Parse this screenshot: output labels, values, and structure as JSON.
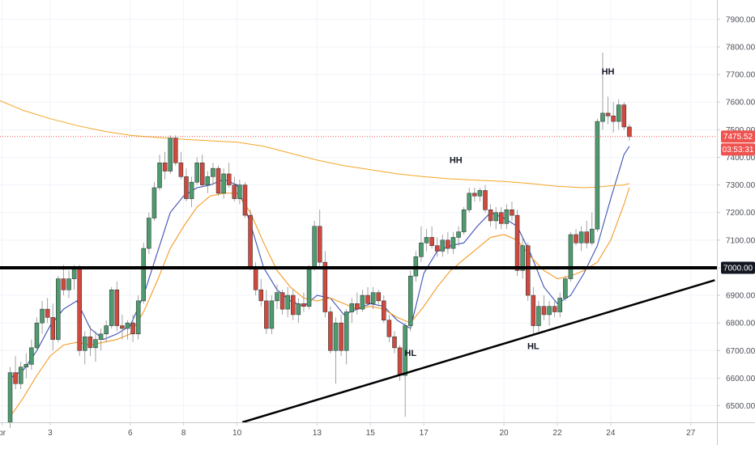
{
  "chart_data": {
    "type": "candlestick",
    "ylim": [
      6440,
      7970
    ],
    "xlim": [
      1.12,
      27.98
    ],
    "y_ticks": [
      "6500.00",
      "6600.00",
      "6700.00",
      "6800.00",
      "6900.00",
      "7000.00",
      "7100.00",
      "7200.00",
      "7300.00",
      "7400.00",
      "7500.00",
      "7600.00",
      "7700.00",
      "7800.00",
      "7900.00"
    ],
    "x_ticks": [
      {
        "label": "pr",
        "x": 1.2
      },
      {
        "label": "3",
        "x": 3
      },
      {
        "label": "6",
        "x": 6
      },
      {
        "label": "8",
        "x": 8
      },
      {
        "label": "10",
        "x": 10
      },
      {
        "label": "13",
        "x": 13
      },
      {
        "label": "15",
        "x": 15
      },
      {
        "label": "17",
        "x": 17
      },
      {
        "label": "20",
        "x": 20
      },
      {
        "label": "22",
        "x": 22
      },
      {
        "label": "24",
        "x": 24
      },
      {
        "label": "27",
        "x": 27
      }
    ],
    "colors": {
      "up": "#26a69a",
      "down": "#ef5350",
      "up_body": "#4f9a6e",
      "down_body": "#d0493f",
      "ema_fast": "#3f51b5",
      "ema_slow": "#f59a23",
      "ma_long": "#f5a623",
      "support": "#000000",
      "trendline": "#000000",
      "price_badge": "#ef5350",
      "level_badge": "#131722",
      "grid": "#f0f3fa"
    },
    "candles": [
      [
        1.5,
        6440,
        6640,
        6420,
        6620
      ],
      [
        1.7,
        6620,
        6680,
        6560,
        6580
      ],
      [
        1.9,
        6580,
        6660,
        6560,
        6640
      ],
      [
        2.1,
        6640,
        6690,
        6600,
        6650
      ],
      [
        2.3,
        6650,
        6740,
        6630,
        6710
      ],
      [
        2.5,
        6710,
        6820,
        6700,
        6800
      ],
      [
        2.7,
        6800,
        6880,
        6760,
        6850
      ],
      [
        2.9,
        6850,
        6890,
        6800,
        6820
      ],
      [
        3.1,
        6820,
        6870,
        6700,
        6740
      ],
      [
        3.3,
        6740,
        6970,
        6730,
        6960
      ],
      [
        3.5,
        6960,
        7010,
        6900,
        6920
      ],
      [
        3.7,
        6920,
        6990,
        6890,
        6960
      ],
      [
        3.9,
        6960,
        7010,
        6920,
        7000
      ],
      [
        4.1,
        7000,
        7010,
        6680,
        6700
      ],
      [
        4.3,
        6700,
        6770,
        6650,
        6750
      ],
      [
        4.5,
        6750,
        6790,
        6680,
        6710
      ],
      [
        4.7,
        6710,
        6770,
        6660,
        6740
      ],
      [
        4.9,
        6740,
        6780,
        6700,
        6760
      ],
      [
        5.1,
        6760,
        6810,
        6730,
        6790
      ],
      [
        5.3,
        6790,
        6930,
        6780,
        6920
      ],
      [
        5.5,
        6920,
        6950,
        6770,
        6790
      ],
      [
        5.7,
        6790,
        6830,
        6740,
        6780
      ],
      [
        5.9,
        6780,
        6810,
        6740,
        6800
      ],
      [
        6.1,
        6800,
        6830,
        6730,
        6760
      ],
      [
        6.3,
        6760,
        6900,
        6740,
        6880
      ],
      [
        6.5,
        6880,
        7090,
        6870,
        7070
      ],
      [
        6.7,
        7070,
        7200,
        7050,
        7180
      ],
      [
        6.9,
        7180,
        7310,
        7170,
        7290
      ],
      [
        7.1,
        7290,
        7410,
        7280,
        7380
      ],
      [
        7.3,
        7380,
        7420,
        7320,
        7350
      ],
      [
        7.5,
        7350,
        7480,
        7340,
        7470
      ],
      [
        7.7,
        7470,
        7480,
        7370,
        7380
      ],
      [
        7.9,
        7380,
        7420,
        7320,
        7330
      ],
      [
        8.1,
        7330,
        7360,
        7240,
        7250
      ],
      [
        8.3,
        7250,
        7330,
        7220,
        7310
      ],
      [
        8.5,
        7310,
        7400,
        7300,
        7380
      ],
      [
        8.7,
        7380,
        7410,
        7290,
        7300
      ],
      [
        8.9,
        7300,
        7350,
        7270,
        7330
      ],
      [
        9.1,
        7330,
        7380,
        7300,
        7360
      ],
      [
        9.3,
        7360,
        7370,
        7260,
        7270
      ],
      [
        9.5,
        7270,
        7360,
        7250,
        7340
      ],
      [
        9.7,
        7340,
        7380,
        7290,
        7300
      ],
      [
        9.9,
        7300,
        7330,
        7240,
        7250
      ],
      [
        10.1,
        7250,
        7320,
        7230,
        7300
      ],
      [
        10.3,
        7300,
        7310,
        7180,
        7190
      ],
      [
        10.5,
        7190,
        7210,
        6990,
        7000
      ],
      [
        10.7,
        7000,
        7020,
        6900,
        6920
      ],
      [
        10.9,
        6920,
        6960,
        6860,
        6880
      ],
      [
        11.1,
        6880,
        6920,
        6760,
        6780
      ],
      [
        11.3,
        6780,
        6900,
        6760,
        6880
      ],
      [
        11.5,
        6880,
        6940,
        6850,
        6910
      ],
      [
        11.7,
        6910,
        6920,
        6830,
        6850
      ],
      [
        11.9,
        6850,
        6930,
        6820,
        6900
      ],
      [
        12.1,
        6900,
        6920,
        6810,
        6830
      ],
      [
        12.3,
        6830,
        6890,
        6800,
        6870
      ],
      [
        12.5,
        6870,
        6910,
        6840,
        6860
      ],
      [
        12.7,
        6860,
        7010,
        6850,
        7000
      ],
      [
        12.9,
        7000,
        7170,
        6990,
        7150
      ],
      [
        13.1,
        7150,
        7210,
        7000,
        7020
      ],
      [
        13.3,
        7020,
        7060,
        6820,
        6840
      ],
      [
        13.5,
        6840,
        6860,
        6690,
        6700
      ],
      [
        13.7,
        6700,
        6820,
        6580,
        6800
      ],
      [
        13.9,
        6800,
        6830,
        6680,
        6700
      ],
      [
        14.1,
        6700,
        6850,
        6650,
        6840
      ],
      [
        14.3,
        6840,
        6890,
        6800,
        6870
      ],
      [
        14.5,
        6870,
        6910,
        6830,
        6850
      ],
      [
        14.7,
        6850,
        6920,
        6840,
        6900
      ],
      [
        14.9,
        6900,
        6930,
        6860,
        6870
      ],
      [
        15.1,
        6870,
        6930,
        6850,
        6910
      ],
      [
        15.3,
        6910,
        6920,
        6860,
        6880
      ],
      [
        15.5,
        6880,
        6900,
        6800,
        6810
      ],
      [
        15.7,
        6810,
        6830,
        6730,
        6750
      ],
      [
        15.9,
        6750,
        6770,
        6690,
        6710
      ],
      [
        16.1,
        6710,
        6720,
        6590,
        6610
      ],
      [
        16.3,
        6610,
        6800,
        6460,
        6790
      ],
      [
        16.5,
        6790,
        6990,
        6770,
        6970
      ],
      [
        16.7,
        6970,
        7060,
        6950,
        7040
      ],
      [
        16.9,
        7040,
        7150,
        7020,
        7090
      ],
      [
        17.1,
        7090,
        7140,
        7060,
        7110
      ],
      [
        17.3,
        7110,
        7150,
        7070,
        7080
      ],
      [
        17.5,
        7080,
        7110,
        7040,
        7060
      ],
      [
        17.7,
        7060,
        7120,
        7040,
        7100
      ],
      [
        17.9,
        7100,
        7130,
        7050,
        7070
      ],
      [
        18.1,
        7070,
        7130,
        7050,
        7110
      ],
      [
        18.3,
        7110,
        7150,
        7080,
        7130
      ],
      [
        18.5,
        7130,
        7220,
        7120,
        7210
      ],
      [
        18.7,
        7210,
        7290,
        7200,
        7270
      ],
      [
        18.9,
        7270,
        7290,
        7240,
        7260
      ],
      [
        19.1,
        7260,
        7290,
        7240,
        7280
      ],
      [
        19.3,
        7280,
        7300,
        7200,
        7210
      ],
      [
        19.5,
        7210,
        7230,
        7150,
        7170
      ],
      [
        19.7,
        7170,
        7220,
        7140,
        7200
      ],
      [
        19.9,
        7200,
        7220,
        7140,
        7160
      ],
      [
        20.1,
        7160,
        7230,
        7140,
        7210
      ],
      [
        20.3,
        7210,
        7240,
        7170,
        7190
      ],
      [
        20.5,
        7190,
        7210,
        6970,
        6990
      ],
      [
        20.7,
        6990,
        7110,
        6960,
        7080
      ],
      [
        20.9,
        7080,
        7090,
        6880,
        6900
      ],
      [
        21.1,
        6900,
        6930,
        6760,
        6790
      ],
      [
        21.3,
        6790,
        6880,
        6770,
        6860
      ],
      [
        21.5,
        6860,
        6900,
        6810,
        6830
      ],
      [
        21.7,
        6830,
        6880,
        6790,
        6860
      ],
      [
        21.9,
        6860,
        6880,
        6820,
        6840
      ],
      [
        22.1,
        6840,
        6910,
        6820,
        6890
      ],
      [
        22.3,
        6890,
        6970,
        6880,
        6960
      ],
      [
        22.5,
        6960,
        7130,
        6950,
        7120
      ],
      [
        22.7,
        7120,
        7140,
        7080,
        7090
      ],
      [
        22.9,
        7090,
        7150,
        7060,
        7130
      ],
      [
        23.1,
        7130,
        7170,
        7070,
        7090
      ],
      [
        23.3,
        7090,
        7200,
        7080,
        7140
      ],
      [
        23.5,
        7140,
        7540,
        7130,
        7530
      ],
      [
        23.7,
        7530,
        7780,
        7500,
        7560
      ],
      [
        23.9,
        7560,
        7620,
        7520,
        7550
      ],
      [
        24.1,
        7550,
        7600,
        7490,
        7530
      ],
      [
        24.3,
        7530,
        7610,
        7500,
        7590
      ],
      [
        24.5,
        7590,
        7600,
        7500,
        7510
      ],
      [
        24.7,
        7510,
        7520,
        7460,
        7475
      ]
    ],
    "series": [
      {
        "kind": "ema_fast",
        "x": [
          1.5,
          2.0,
          2.5,
          3.0,
          3.5,
          4.0,
          4.5,
          5.0,
          5.5,
          6.0,
          6.5,
          7.0,
          7.5,
          8.0,
          8.5,
          9.0,
          9.5,
          10.0,
          10.5,
          11.0,
          11.5,
          12.0,
          12.5,
          13.0,
          13.5,
          14.0,
          14.5,
          15.0,
          15.5,
          16.0,
          16.5,
          17.0,
          17.5,
          18.0,
          18.5,
          19.0,
          19.5,
          20.0,
          20.5,
          21.0,
          21.5,
          22.0,
          22.5,
          23.0,
          23.5,
          24.0,
          24.5,
          24.7
        ],
        "y": [
          6600,
          6630,
          6700,
          6790,
          6850,
          6880,
          6780,
          6740,
          6760,
          6790,
          6900,
          7050,
          7200,
          7260,
          7290,
          7300,
          7320,
          7300,
          7160,
          7000,
          6920,
          6880,
          6860,
          6900,
          6890,
          6830,
          6850,
          6870,
          6860,
          6810,
          6780,
          6980,
          7060,
          7080,
          7090,
          7150,
          7200,
          7180,
          7150,
          7050,
          6930,
          6870,
          6900,
          6980,
          7080,
          7250,
          7410,
          7440
        ]
      },
      {
        "kind": "ema_slow",
        "x": [
          1.5,
          2.0,
          2.5,
          3.0,
          3.5,
          4.0,
          4.5,
          5.0,
          5.5,
          6.0,
          6.5,
          7.0,
          7.5,
          8.0,
          8.5,
          9.0,
          9.5,
          10.0,
          10.5,
          11.0,
          11.5,
          12.0,
          12.5,
          13.0,
          13.5,
          14.0,
          14.5,
          15.0,
          15.5,
          16.0,
          16.5,
          17.0,
          17.5,
          18.0,
          18.5,
          19.0,
          19.5,
          20.0,
          20.5,
          21.0,
          21.5,
          22.0,
          22.5,
          23.0,
          23.5,
          24.0,
          24.5,
          24.7
        ],
        "y": [
          6460,
          6530,
          6610,
          6680,
          6720,
          6730,
          6720,
          6730,
          6740,
          6760,
          6840,
          6950,
          7070,
          7150,
          7220,
          7260,
          7270,
          7270,
          7200,
          7090,
          6990,
          6930,
          6890,
          6880,
          6890,
          6870,
          6850,
          6860,
          6850,
          6820,
          6800,
          6860,
          6930,
          6990,
          7030,
          7070,
          7110,
          7120,
          7100,
          7040,
          6990,
          6960,
          6970,
          6990,
          7020,
          7100,
          7230,
          7290
        ]
      },
      {
        "kind": "ma_long",
        "x": [
          1.12,
          2,
          3,
          4,
          5,
          6,
          7,
          8,
          9,
          10,
          11,
          12,
          13,
          14,
          15,
          16,
          17,
          18,
          19,
          20,
          21,
          22,
          23,
          23.5,
          24,
          24.5,
          24.7
        ],
        "y": [
          7605,
          7570,
          7540,
          7515,
          7495,
          7480,
          7472,
          7465,
          7460,
          7455,
          7440,
          7415,
          7390,
          7370,
          7355,
          7340,
          7330,
          7322,
          7317,
          7313,
          7305,
          7295,
          7290,
          7292,
          7297,
          7300,
          7305
        ]
      }
    ],
    "support_level": 7000,
    "trendline": [
      [
        10.2,
        6440
      ],
      [
        27.9,
        6955
      ]
    ],
    "current_price": 7475.52,
    "last_price_label": "7475.52",
    "countdown": "03:53:31",
    "level_label": "7000.00",
    "annotations": [
      {
        "text": "HH",
        "x": 23.9,
        "y": 7700
      },
      {
        "text": "HH",
        "x": 18.2,
        "y": 7380
      },
      {
        "text": "HL",
        "x": 16.5,
        "y": 6680
      },
      {
        "text": "HL",
        "x": 21.1,
        "y": 6705
      }
    ]
  }
}
